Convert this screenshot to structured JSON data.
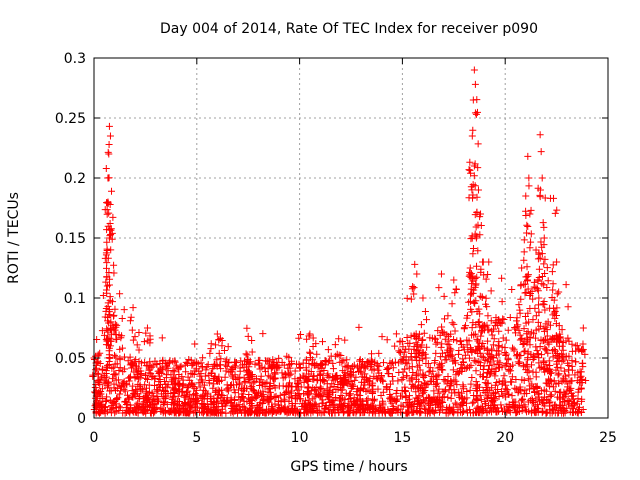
{
  "chart_data": {
    "type": "scatter",
    "title": "Day 004 of 2014, Rate Of TEC Index for receiver p090",
    "xlabel": "GPS time / hours",
    "ylabel": "ROTI / TECUs",
    "xlim": [
      0,
      25
    ],
    "ylim": [
      0,
      0.3
    ],
    "x_ticks": [
      0,
      5,
      10,
      15,
      20,
      25
    ],
    "x_tick_labels": [
      "0",
      "5",
      "10",
      "15",
      "20",
      "25"
    ],
    "y_ticks": [
      0,
      0.05,
      0.1,
      0.15,
      0.2,
      0.25,
      0.3
    ],
    "y_tick_labels": [
      "0",
      "0.05",
      "0.1",
      "0.15",
      "0.2",
      "0.25",
      "0.3"
    ],
    "grid": true,
    "marker": "+",
    "colors": {
      "points": "#ff0000",
      "grid": "#a0a0a0",
      "axes": "#000000"
    },
    "envelope_description_hours": [
      0,
      23.8
    ],
    "peaks": [
      {
        "x": 0.75,
        "y": 0.243
      },
      {
        "x": 0.8,
        "y": 0.235
      },
      {
        "x": 0.72,
        "y": 0.22
      },
      {
        "x": 0.7,
        "y": 0.2
      },
      {
        "x": 0.68,
        "y": 0.18
      },
      {
        "x": 0.75,
        "y": 0.15
      },
      {
        "x": 0.55,
        "y": 0.133
      },
      {
        "x": 0.65,
        "y": 0.11
      },
      {
        "x": 0.9,
        "y": 0.097
      },
      {
        "x": 1.9,
        "y": 0.092
      },
      {
        "x": 2.6,
        "y": 0.075
      },
      {
        "x": 6.0,
        "y": 0.07
      },
      {
        "x": 7.5,
        "y": 0.068
      },
      {
        "x": 10.5,
        "y": 0.07
      },
      {
        "x": 11.9,
        "y": 0.066
      },
      {
        "x": 15.6,
        "y": 0.128
      },
      {
        "x": 15.7,
        "y": 0.12
      },
      {
        "x": 16.0,
        "y": 0.1
      },
      {
        "x": 16.9,
        "y": 0.12
      },
      {
        "x": 17.5,
        "y": 0.115
      },
      {
        "x": 18.5,
        "y": 0.29
      },
      {
        "x": 18.55,
        "y": 0.278
      },
      {
        "x": 18.45,
        "y": 0.265
      },
      {
        "x": 18.6,
        "y": 0.253
      },
      {
        "x": 18.4,
        "y": 0.235
      },
      {
        "x": 18.5,
        "y": 0.21
      },
      {
        "x": 18.7,
        "y": 0.19
      },
      {
        "x": 18.8,
        "y": 0.17
      },
      {
        "x": 18.6,
        "y": 0.15
      },
      {
        "x": 18.9,
        "y": 0.13
      },
      {
        "x": 19.2,
        "y": 0.13
      },
      {
        "x": 18.3,
        "y": 0.125
      },
      {
        "x": 21.7,
        "y": 0.236
      },
      {
        "x": 21.75,
        "y": 0.222
      },
      {
        "x": 21.8,
        "y": 0.2
      },
      {
        "x": 21.1,
        "y": 0.218
      },
      {
        "x": 21.15,
        "y": 0.2
      },
      {
        "x": 21.0,
        "y": 0.185
      },
      {
        "x": 21.2,
        "y": 0.17
      },
      {
        "x": 22.2,
        "y": 0.183
      },
      {
        "x": 22.35,
        "y": 0.183
      },
      {
        "x": 21.9,
        "y": 0.15
      },
      {
        "x": 21.5,
        "y": 0.14
      },
      {
        "x": 22.5,
        "y": 0.13
      },
      {
        "x": 20.8,
        "y": 0.125
      },
      {
        "x": 22.6,
        "y": 0.105
      },
      {
        "x": 23.8,
        "y": 0.075
      },
      {
        "x": 0.0,
        "y": 0.05
      },
      {
        "x": 0.2,
        "y": 0.03
      }
    ]
  }
}
